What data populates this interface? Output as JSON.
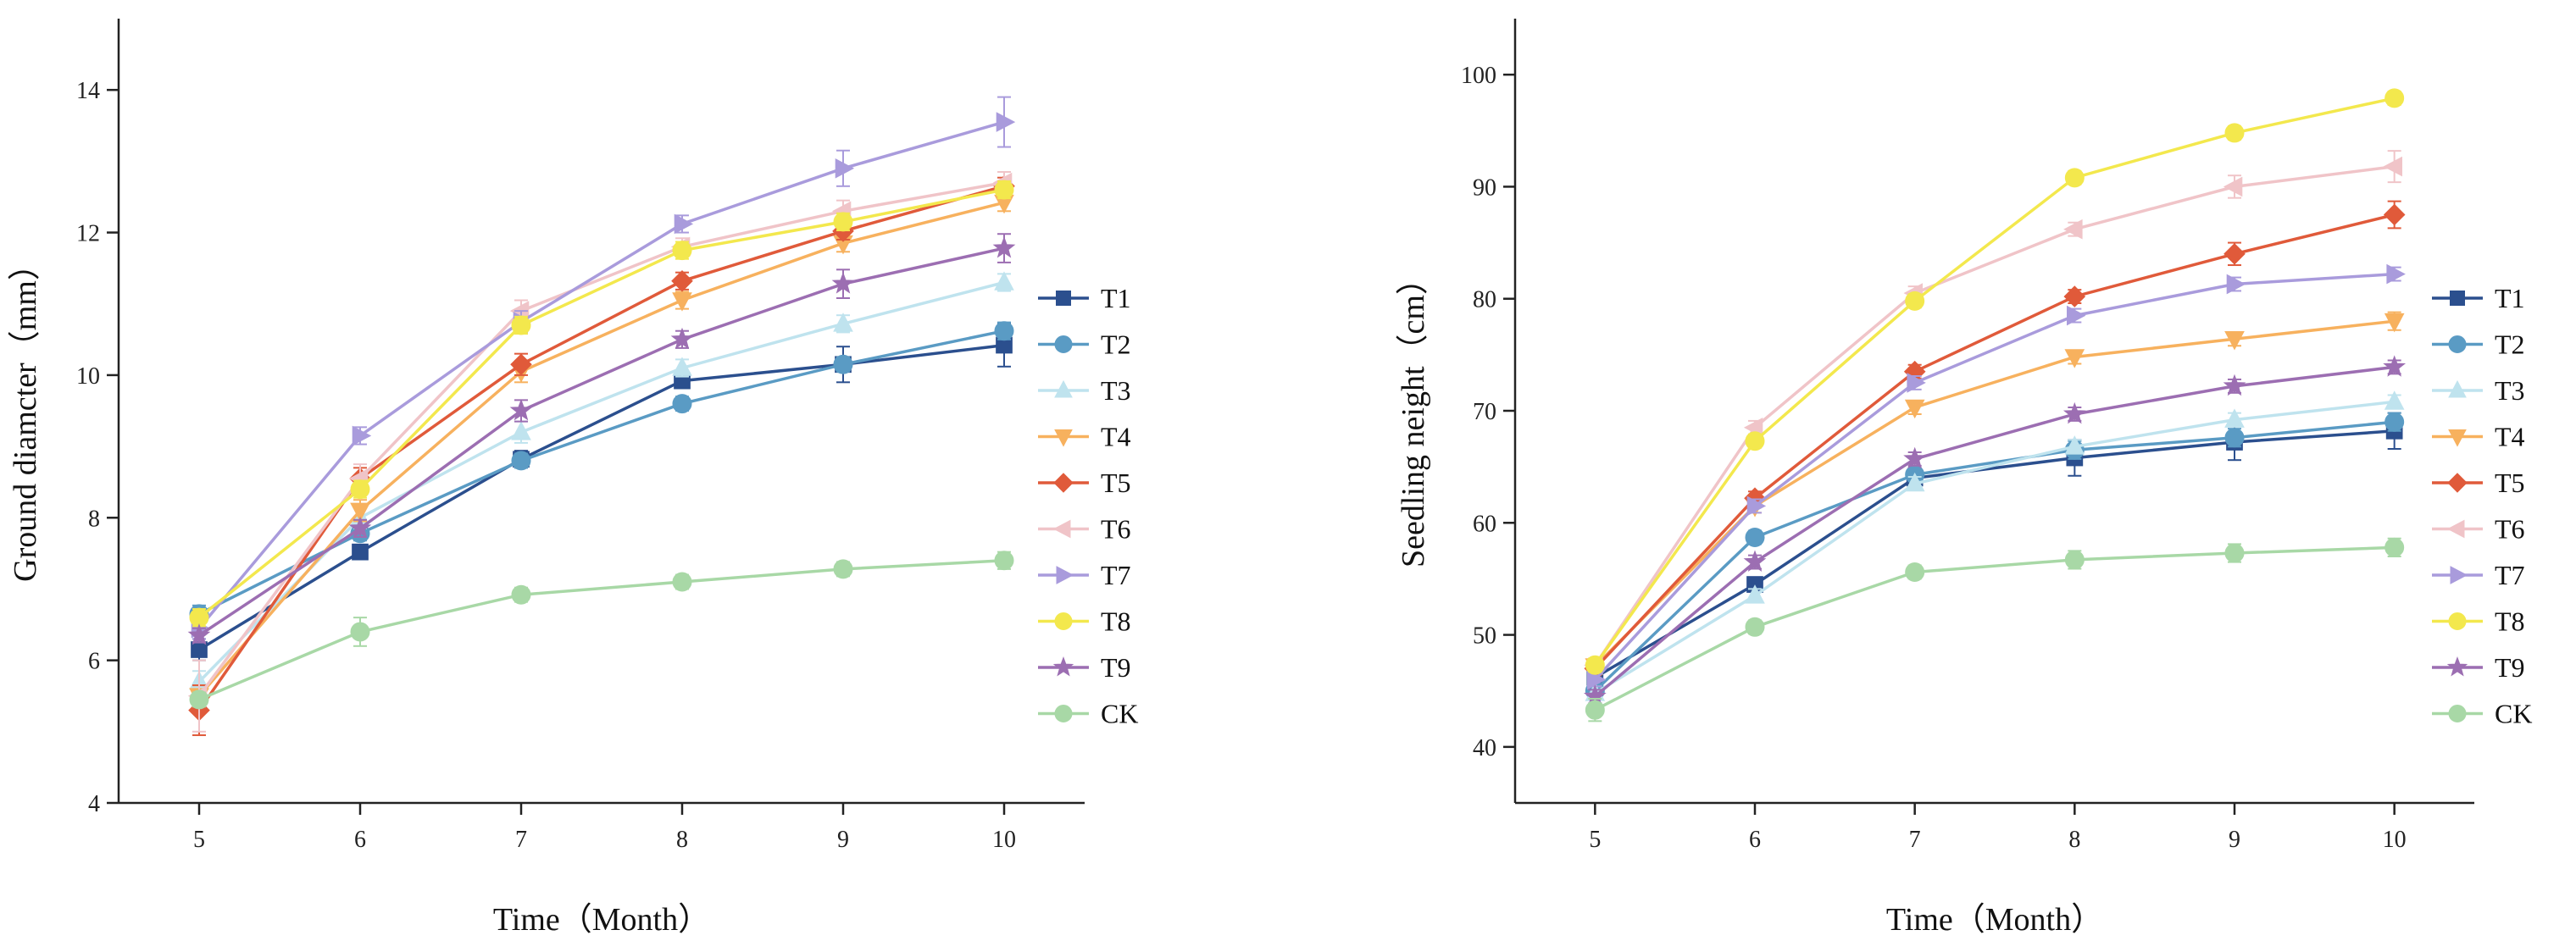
{
  "chart_data": [
    {
      "type": "line",
      "xlabel": "Time（Month）",
      "ylabel": "Ground diamcter（mm）",
      "x": [
        5,
        6,
        7,
        8,
        9,
        10
      ],
      "xlim": [
        4.5,
        10.5
      ],
      "ylim": [
        4,
        15
      ],
      "yticks": [
        4,
        6,
        8,
        10,
        12,
        14
      ],
      "legend_position": "right",
      "series": [
        {
          "name": "T1",
          "color": "#2b4f8e",
          "marker": "square",
          "values": [
            6.15,
            7.52,
            8.82,
            9.92,
            10.15,
            10.42
          ],
          "err": [
            0.15,
            0.1,
            0.12,
            0.1,
            0.25,
            0.3
          ]
        },
        {
          "name": "T2",
          "color": "#5a9bc4",
          "marker": "circle",
          "values": [
            6.65,
            7.78,
            8.8,
            9.6,
            10.15,
            10.62
          ],
          "err": [
            0.12,
            0.1,
            0.1,
            0.1,
            0.1,
            0.12
          ]
        },
        {
          "name": "T3",
          "color": "#bfe3ee",
          "marker": "triangle",
          "values": [
            5.7,
            8.0,
            9.2,
            10.1,
            10.72,
            11.3
          ],
          "err": [
            0.15,
            0.15,
            0.15,
            0.12,
            0.12,
            0.12
          ]
        },
        {
          "name": "T4",
          "color": "#f7b15e",
          "marker": "tri-down",
          "values": [
            5.5,
            8.1,
            10.05,
            11.05,
            11.85,
            12.42
          ],
          "err": [
            0.15,
            0.15,
            0.15,
            0.12,
            0.12,
            0.12
          ]
        },
        {
          "name": "T5",
          "color": "#e05a3a",
          "marker": "diamond",
          "values": [
            5.3,
            8.55,
            10.15,
            11.32,
            12.02,
            12.65
          ],
          "err": [
            0.35,
            0.15,
            0.15,
            0.12,
            0.12,
            0.12
          ]
        },
        {
          "name": "T6",
          "color": "#f0c4c8",
          "marker": "tri-left",
          "values": [
            5.5,
            8.55,
            10.9,
            11.8,
            12.3,
            12.7
          ],
          "err": [
            0.5,
            0.2,
            0.15,
            0.12,
            0.15,
            0.15
          ]
        },
        {
          "name": "T7",
          "color": "#a99bdc",
          "marker": "tri-right",
          "values": [
            6.45,
            9.15,
            10.75,
            12.12,
            12.9,
            13.55
          ],
          "err": [
            0.15,
            0.12,
            0.15,
            0.12,
            0.25,
            0.35
          ]
        },
        {
          "name": "T8",
          "color": "#f3e84d",
          "marker": "circle",
          "values": [
            6.6,
            8.4,
            10.7,
            11.75,
            12.15,
            12.6
          ],
          "err": [
            0.12,
            0.12,
            0.12,
            0.12,
            0.12,
            0.12
          ]
        },
        {
          "name": "T9",
          "color": "#9c6eb2",
          "marker": "star",
          "values": [
            6.35,
            7.85,
            9.5,
            10.5,
            11.28,
            11.78
          ],
          "err": [
            0.1,
            0.12,
            0.15,
            0.12,
            0.2,
            0.2
          ]
        },
        {
          "name": "CK",
          "color": "#a8d8a6",
          "marker": "circle",
          "values": [
            5.45,
            6.4,
            6.92,
            7.1,
            7.28,
            7.4
          ],
          "err": [
            0.1,
            0.2,
            0.1,
            0.1,
            0.1,
            0.12
          ]
        }
      ]
    },
    {
      "type": "line",
      "xlabel": "Time（Month）",
      "ylabel": "Seedling neight（cm）",
      "x": [
        5,
        6,
        7,
        8,
        9,
        10
      ],
      "xlim": [
        4.5,
        10.5
      ],
      "ylim": [
        35,
        105
      ],
      "yticks": [
        40,
        50,
        60,
        70,
        80,
        90,
        100
      ],
      "legend_position": "right",
      "series": [
        {
          "name": "T1",
          "color": "#2b4f8e",
          "marker": "square",
          "values": [
            46.2,
            54.5,
            64.0,
            65.8,
            67.2,
            68.2
          ],
          "err": [
            0.6,
            0.6,
            0.8,
            1.6,
            1.6,
            1.6
          ]
        },
        {
          "name": "T2",
          "color": "#5a9bc4",
          "marker": "circle",
          "values": [
            45.0,
            58.7,
            64.3,
            66.5,
            67.6,
            69.0
          ],
          "err": [
            0.6,
            0.6,
            0.6,
            0.8,
            0.8,
            0.8
          ]
        },
        {
          "name": "T3",
          "color": "#bfe3ee",
          "marker": "triangle",
          "values": [
            44.8,
            53.5,
            63.5,
            66.8,
            69.2,
            70.8
          ],
          "err": [
            0.6,
            0.6,
            0.6,
            0.6,
            0.6,
            0.6
          ]
        },
        {
          "name": "T4",
          "color": "#f7b15e",
          "marker": "tri-down",
          "values": [
            47.2,
            61.5,
            70.3,
            74.8,
            76.4,
            78.0
          ],
          "err": [
            0.6,
            0.6,
            0.6,
            0.6,
            0.6,
            0.8
          ]
        },
        {
          "name": "T5",
          "color": "#e05a3a",
          "marker": "diamond",
          "values": [
            47.0,
            62.2,
            73.5,
            80.2,
            84.0,
            87.5
          ],
          "err": [
            0.6,
            0.6,
            0.6,
            0.6,
            1.0,
            1.2
          ]
        },
        {
          "name": "T6",
          "color": "#f0c4c8",
          "marker": "tri-left",
          "values": [
            47.3,
            68.5,
            80.5,
            86.2,
            90.0,
            91.8
          ],
          "err": [
            0.6,
            0.6,
            0.6,
            0.6,
            1.0,
            1.4
          ]
        },
        {
          "name": "T7",
          "color": "#a99bdc",
          "marker": "tri-right",
          "values": [
            46.0,
            61.5,
            72.5,
            78.5,
            81.3,
            82.2
          ],
          "err": [
            0.6,
            0.6,
            0.6,
            0.6,
            0.6,
            0.6
          ]
        },
        {
          "name": "T8",
          "color": "#f3e84d",
          "marker": "circle",
          "values": [
            47.3,
            67.3,
            79.8,
            90.8,
            94.8,
            97.9
          ],
          "err": [
            0.6,
            0.6,
            0.6,
            0.6,
            0.6,
            0.6
          ]
        },
        {
          "name": "T9",
          "color": "#9c6eb2",
          "marker": "star",
          "values": [
            44.5,
            56.5,
            65.7,
            69.7,
            72.2,
            73.9
          ],
          "err": [
            0.6,
            0.6,
            0.6,
            0.6,
            0.6,
            0.6
          ]
        },
        {
          "name": "CK",
          "color": "#a8d8a6",
          "marker": "circle",
          "values": [
            43.3,
            50.7,
            55.6,
            56.7,
            57.3,
            57.8
          ],
          "err": [
            1.0,
            0.6,
            0.6,
            0.8,
            0.8,
            0.8
          ]
        }
      ]
    }
  ]
}
